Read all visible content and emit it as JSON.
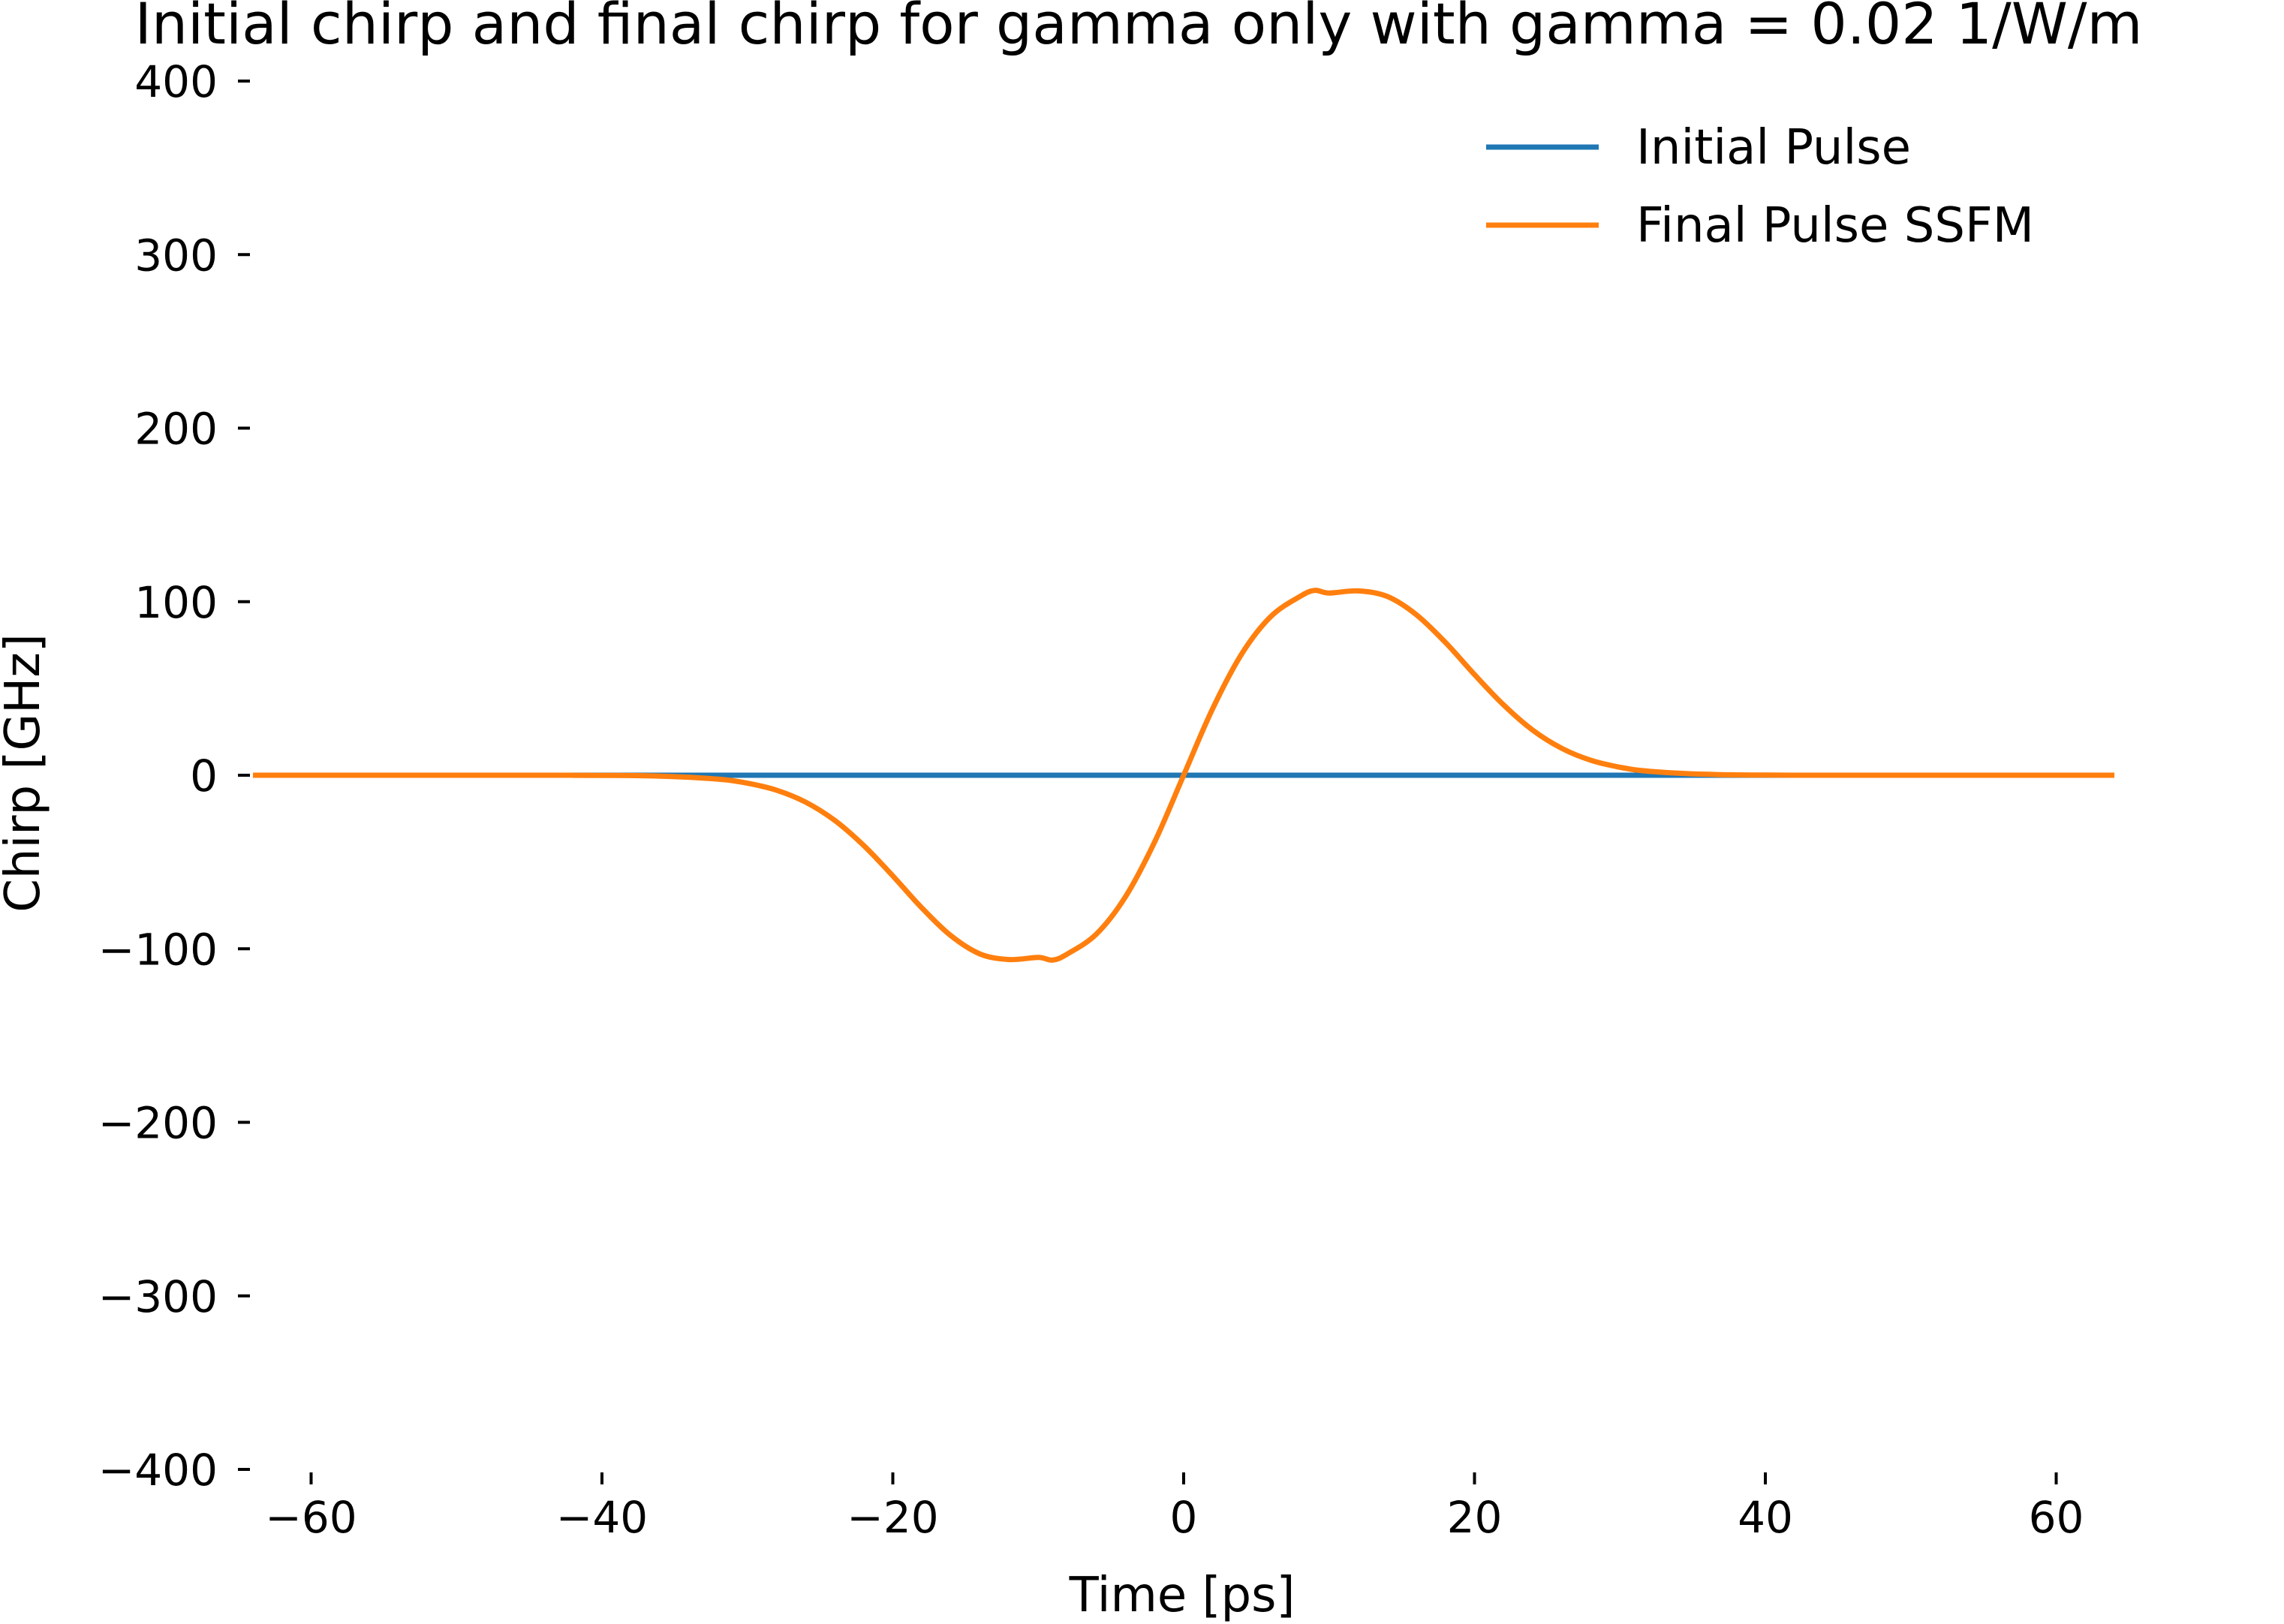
{
  "chart_data": {
    "type": "line",
    "title": "Initial chirp and final chirp for gamma only with gamma = 0.02 1/W/m",
    "xlabel": "Time [ps]",
    "ylabel": "Chirp [GHz]",
    "xlim": [
      -64,
      64
    ],
    "ylim": [
      -400,
      400
    ],
    "xticks": [
      -60,
      -40,
      -20,
      0,
      20,
      40,
      60
    ],
    "xtick_labels": [
      "−60",
      "−40",
      "−20",
      "0",
      "20",
      "40",
      "60"
    ],
    "yticks": [
      400,
      300,
      200,
      100,
      0,
      -100,
      -200,
      -300,
      -400
    ],
    "ytick_labels": [
      "400",
      "300",
      "200",
      "100",
      "0",
      "−100",
      "−200",
      "−300",
      "−400"
    ],
    "grid": false,
    "legend_position": "top-right",
    "series": [
      {
        "name": "Initial Pulse",
        "color": "#1f77b4",
        "x": [
          -64,
          -56,
          -48,
          -40,
          -32,
          -24,
          -16,
          -8,
          0,
          8,
          16,
          24,
          32,
          40,
          48,
          56,
          64
        ],
        "y": [
          0,
          0,
          0,
          0,
          0,
          0,
          0,
          0,
          0,
          0,
          0,
          0,
          0,
          0,
          0,
          0,
          0
        ]
      },
      {
        "name": "Final Pulse SSFM",
        "color": "#ff7f0e",
        "x": [
          -64,
          -56,
          -48,
          -44,
          -40,
          -36,
          -32,
          -30,
          -28,
          -26,
          -24,
          -22,
          -20,
          -18,
          -16,
          -14,
          -12,
          -10,
          -9,
          -8,
          -6,
          -4,
          -2,
          0,
          2,
          4,
          6,
          8,
          9,
          10,
          12,
          14,
          16,
          18,
          20,
          22,
          24,
          26,
          28,
          30,
          32,
          36,
          40,
          44,
          48,
          56,
          64
        ],
        "y": [
          0,
          0,
          0,
          -0.02,
          -0.1,
          -0.5,
          -2.3,
          -4.6,
          -8.6,
          -15.5,
          -26,
          -40.5,
          -58,
          -76.5,
          -92.5,
          -103,
          -106.2,
          -105,
          -106.5,
          -103,
          -91.5,
          -70,
          -38.5,
          0,
          38.5,
          70,
          91.5,
          103,
          106.5,
          105,
          106.2,
          103,
          92.5,
          76.5,
          58,
          40.5,
          26,
          15.5,
          8.6,
          4.6,
          2.3,
          0.5,
          0.1,
          0.02,
          0,
          0,
          0
        ]
      }
    ]
  }
}
